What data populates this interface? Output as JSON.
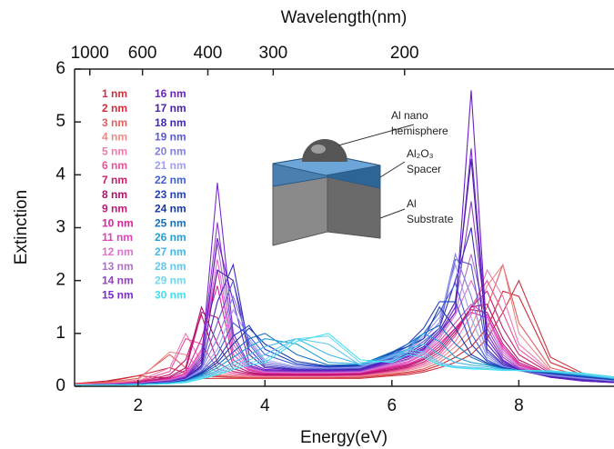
{
  "chart_data": {
    "type": "line",
    "title": "Wavelength(nm)",
    "x_label": "Energy(eV)",
    "y_label": "Extinction",
    "x": [
      1,
      1.5,
      2,
      2.5,
      2.75,
      3,
      3.25,
      3.5,
      3.75,
      4,
      4.5,
      5,
      5.5,
      6,
      6.25,
      6.5,
      6.75,
      7,
      7.25,
      7.5,
      7.75,
      8,
      8.5,
      9,
      9.5
    ],
    "xlim": [
      1,
      9.5
    ],
    "xticks": [
      2,
      4,
      6,
      8
    ],
    "ylim": [
      0,
      6
    ],
    "yticks": [
      0,
      1,
      2,
      3,
      4,
      5,
      6
    ],
    "x2ticks": [
      {
        "value": 1.24,
        "label": "1000"
      },
      {
        "value": 2.07,
        "label": "600"
      },
      {
        "value": 3.1,
        "label": "400"
      },
      {
        "value": 4.13,
        "label": "300"
      },
      {
        "value": 6.2,
        "label": "200"
      }
    ],
    "annotations": [
      "Al nano",
      "hemisphere",
      "Al₂O₃",
      "Spacer",
      "Al",
      "Substrate"
    ],
    "series": [
      {
        "name": "1 nm",
        "color": "#c8323c",
        "values": [
          0.05,
          0.1,
          0.2,
          0.15,
          0.15,
          0.15,
          0.15,
          0.15,
          0.15,
          0.15,
          0.15,
          0.15,
          0.15,
          0.2,
          0.22,
          0.27,
          0.35,
          0.45,
          0.6,
          0.9,
          1.4,
          2.0,
          0.55,
          0.25,
          0.15
        ]
      },
      {
        "name": "2 nm",
        "color": "#d42a3a",
        "values": [
          0.05,
          0.08,
          0.2,
          0.35,
          0.25,
          0.2,
          0.18,
          0.17,
          0.16,
          0.16,
          0.16,
          0.16,
          0.17,
          0.22,
          0.25,
          0.3,
          0.4,
          0.55,
          0.75,
          1.1,
          1.8,
          1.7,
          0.45,
          0.22,
          0.14
        ]
      },
      {
        "name": "3 nm",
        "color": "#e0605f",
        "values": [
          0.04,
          0.07,
          0.15,
          0.6,
          0.35,
          0.25,
          0.2,
          0.18,
          0.17,
          0.17,
          0.17,
          0.17,
          0.18,
          0.23,
          0.27,
          0.33,
          0.45,
          0.65,
          0.95,
          1.5,
          2.3,
          1.2,
          0.35,
          0.2,
          0.13
        ]
      },
      {
        "name": "4 nm",
        "color": "#ea8a8a",
        "values": [
          0.04,
          0.06,
          0.12,
          0.65,
          0.6,
          0.3,
          0.22,
          0.2,
          0.18,
          0.18,
          0.18,
          0.18,
          0.19,
          0.25,
          0.3,
          0.37,
          0.5,
          0.75,
          1.1,
          1.9,
          2.3,
          1.0,
          0.3,
          0.18,
          0.12
        ]
      },
      {
        "name": "5 nm",
        "color": "#f07ab0",
        "values": [
          0.03,
          0.05,
          0.1,
          0.35,
          1.0,
          0.45,
          0.27,
          0.22,
          0.2,
          0.19,
          0.19,
          0.19,
          0.2,
          0.27,
          0.32,
          0.4,
          0.55,
          0.85,
          1.35,
          2.2,
          1.7,
          0.8,
          0.28,
          0.16,
          0.11
        ]
      },
      {
        "name": "6 nm",
        "color": "#e8509a",
        "values": [
          0.03,
          0.05,
          0.09,
          0.28,
          0.9,
          0.8,
          0.33,
          0.25,
          0.21,
          0.2,
          0.2,
          0.2,
          0.21,
          0.28,
          0.34,
          0.43,
          0.6,
          0.95,
          1.5,
          2.0,
          1.4,
          0.7,
          0.26,
          0.15,
          0.1
        ]
      },
      {
        "name": "7 nm",
        "color": "#c81e6e",
        "values": [
          0.03,
          0.04,
          0.08,
          0.22,
          0.5,
          1.35,
          0.45,
          0.28,
          0.23,
          0.21,
          0.21,
          0.21,
          0.22,
          0.3,
          0.36,
          0.46,
          0.65,
          1.0,
          1.5,
          1.8,
          1.1,
          0.6,
          0.24,
          0.14,
          0.1
        ]
      },
      {
        "name": "8 nm",
        "color": "#b0106a",
        "values": [
          0.03,
          0.04,
          0.07,
          0.18,
          0.35,
          1.5,
          0.8,
          0.33,
          0.25,
          0.22,
          0.22,
          0.22,
          0.23,
          0.32,
          0.38,
          0.5,
          0.7,
          1.05,
          1.5,
          1.55,
          0.9,
          0.5,
          0.22,
          0.13,
          0.09
        ]
      },
      {
        "name": "9 nm",
        "color": "#c0187a",
        "values": [
          0.03,
          0.04,
          0.07,
          0.16,
          0.3,
          1.4,
          1.3,
          0.4,
          0.27,
          0.23,
          0.23,
          0.23,
          0.24,
          0.34,
          0.4,
          0.52,
          0.75,
          1.1,
          1.45,
          1.4,
          0.8,
          0.45,
          0.21,
          0.12,
          0.09
        ]
      },
      {
        "name": "10 nm",
        "color": "#e0209c",
        "values": [
          0.03,
          0.04,
          0.06,
          0.14,
          0.25,
          0.9,
          1.9,
          0.5,
          0.3,
          0.25,
          0.24,
          0.24,
          0.25,
          0.36,
          0.42,
          0.55,
          0.8,
          1.1,
          1.4,
          1.3,
          0.75,
          0.42,
          0.2,
          0.12,
          0.08
        ]
      },
      {
        "name": "11 nm",
        "color": "#e040b8",
        "values": [
          0.03,
          0.04,
          0.06,
          0.13,
          0.22,
          0.7,
          2.2,
          0.6,
          0.32,
          0.26,
          0.25,
          0.25,
          0.26,
          0.38,
          0.45,
          0.6,
          0.85,
          1.2,
          1.55,
          1.35,
          0.7,
          0.4,
          0.19,
          0.11,
          0.08
        ]
      },
      {
        "name": "12 nm",
        "color": "#e070d0",
        "values": [
          0.03,
          0.04,
          0.06,
          0.12,
          0.2,
          0.65,
          2.4,
          0.7,
          0.34,
          0.27,
          0.26,
          0.26,
          0.27,
          0.4,
          0.47,
          0.62,
          0.9,
          1.35,
          2.0,
          1.3,
          0.65,
          0.38,
          0.18,
          0.11,
          0.08
        ]
      },
      {
        "name": "13 nm",
        "color": "#b070c8",
        "values": [
          0.02,
          0.03,
          0.05,
          0.11,
          0.19,
          0.6,
          2.7,
          0.8,
          0.36,
          0.28,
          0.27,
          0.27,
          0.28,
          0.42,
          0.5,
          0.65,
          0.95,
          1.4,
          2.5,
          1.2,
          0.6,
          0.36,
          0.18,
          0.1,
          0.07
        ]
      },
      {
        "name": "14 nm",
        "color": "#9040c0",
        "values": [
          0.02,
          0.03,
          0.05,
          0.1,
          0.18,
          0.55,
          3.1,
          0.9,
          0.38,
          0.29,
          0.28,
          0.28,
          0.29,
          0.44,
          0.52,
          0.68,
          1.0,
          1.5,
          3.5,
          1.1,
          0.55,
          0.34,
          0.17,
          0.1,
          0.07
        ]
      },
      {
        "name": "15 nm",
        "color": "#7a2ad0",
        "values": [
          0.02,
          0.03,
          0.05,
          0.1,
          0.17,
          0.5,
          3.85,
          1.0,
          0.4,
          0.3,
          0.29,
          0.29,
          0.3,
          0.46,
          0.55,
          0.7,
          1.0,
          1.5,
          4.5,
          1.0,
          0.5,
          0.32,
          0.17,
          0.1,
          0.07
        ]
      },
      {
        "name": "16 nm",
        "color": "#6a20c8",
        "values": [
          0.02,
          0.03,
          0.04,
          0.09,
          0.16,
          0.45,
          2.8,
          1.6,
          0.45,
          0.32,
          0.3,
          0.3,
          0.31,
          0.48,
          0.57,
          0.72,
          1.0,
          1.4,
          5.6,
          0.9,
          0.48,
          0.31,
          0.17,
          0.11,
          0.08
        ]
      },
      {
        "name": "17 nm",
        "color": "#4a20a8",
        "values": [
          0.02,
          0.03,
          0.04,
          0.09,
          0.15,
          0.4,
          2.2,
          2.0,
          0.6,
          0.35,
          0.31,
          0.31,
          0.32,
          0.5,
          0.6,
          0.75,
          1.05,
          1.6,
          4.3,
          0.8,
          0.45,
          0.3,
          0.18,
          0.12,
          0.08
        ]
      },
      {
        "name": "18 nm",
        "color": "#3a28c0",
        "values": [
          0.02,
          0.03,
          0.04,
          0.08,
          0.14,
          0.38,
          1.6,
          2.3,
          0.7,
          0.38,
          0.32,
          0.32,
          0.33,
          0.52,
          0.62,
          0.8,
          1.1,
          2.0,
          3.0,
          0.7,
          0.42,
          0.3,
          0.19,
          0.13,
          0.09
        ]
      },
      {
        "name": "19 nm",
        "color": "#5a5ad0",
        "values": [
          0.02,
          0.03,
          0.04,
          0.08,
          0.14,
          0.35,
          1.2,
          2.0,
          0.8,
          0.42,
          0.33,
          0.33,
          0.34,
          0.54,
          0.65,
          0.85,
          1.1,
          2.4,
          2.3,
          0.65,
          0.4,
          0.3,
          0.2,
          0.14,
          0.1
        ]
      },
      {
        "name": "20 nm",
        "color": "#8080e0",
        "values": [
          0.02,
          0.03,
          0.04,
          0.08,
          0.13,
          0.33,
          0.9,
          1.7,
          0.85,
          0.46,
          0.35,
          0.34,
          0.36,
          0.56,
          0.68,
          0.9,
          1.2,
          2.5,
          1.7,
          0.6,
          0.38,
          0.3,
          0.21,
          0.15,
          0.1
        ]
      },
      {
        "name": "21 nm",
        "color": "#a0a0f0",
        "values": [
          0.02,
          0.03,
          0.04,
          0.07,
          0.13,
          0.3,
          0.7,
          1.45,
          0.9,
          0.5,
          0.37,
          0.35,
          0.37,
          0.58,
          0.7,
          0.95,
          1.3,
          2.3,
          1.3,
          0.55,
          0.37,
          0.3,
          0.22,
          0.16,
          0.11
        ]
      },
      {
        "name": "22 nm",
        "color": "#4060d8",
        "values": [
          0.02,
          0.03,
          0.04,
          0.07,
          0.12,
          0.28,
          0.6,
          1.2,
          0.95,
          0.6,
          0.4,
          0.36,
          0.38,
          0.6,
          0.75,
          1.0,
          1.4,
          1.95,
          1.0,
          0.5,
          0.36,
          0.3,
          0.23,
          0.17,
          0.12
        ]
      },
      {
        "name": "23 nm",
        "color": "#2040c0",
        "values": [
          0.02,
          0.03,
          0.04,
          0.07,
          0.12,
          0.26,
          0.5,
          0.95,
          1.15,
          0.7,
          0.43,
          0.37,
          0.39,
          0.62,
          0.8,
          1.1,
          1.6,
          1.6,
          0.8,
          0.47,
          0.35,
          0.3,
          0.24,
          0.18,
          0.12
        ]
      },
      {
        "name": "24 nm",
        "color": "#1838a8",
        "values": [
          0.02,
          0.03,
          0.04,
          0.06,
          0.11,
          0.24,
          0.45,
          0.8,
          1.1,
          0.8,
          0.47,
          0.38,
          0.4,
          0.64,
          0.75,
          0.9,
          1.5,
          1.1,
          0.6,
          0.44,
          0.34,
          0.3,
          0.25,
          0.19,
          0.13
        ]
      },
      {
        "name": "25 nm",
        "color": "#1870c0",
        "values": [
          0.02,
          0.03,
          0.04,
          0.06,
          0.1,
          0.22,
          0.4,
          0.65,
          0.9,
          1.0,
          0.6,
          0.4,
          0.41,
          0.65,
          0.8,
          1.0,
          1.15,
          0.8,
          0.55,
          0.42,
          0.33,
          0.3,
          0.26,
          0.2,
          0.14
        ]
      },
      {
        "name": "26 nm",
        "color": "#20a0d8",
        "values": [
          0.02,
          0.02,
          0.03,
          0.06,
          0.1,
          0.2,
          0.35,
          0.55,
          0.75,
          0.9,
          0.8,
          0.45,
          0.42,
          0.6,
          0.7,
          1.0,
          0.85,
          0.55,
          0.45,
          0.4,
          0.33,
          0.3,
          0.27,
          0.21,
          0.15
        ]
      },
      {
        "name": "27 nm",
        "color": "#40b8e8",
        "values": [
          0.02,
          0.02,
          0.03,
          0.05,
          0.09,
          0.18,
          0.3,
          0.45,
          0.6,
          0.75,
          0.9,
          0.6,
          0.42,
          0.55,
          0.7,
          0.8,
          0.6,
          0.45,
          0.4,
          0.37,
          0.32,
          0.3,
          0.28,
          0.22,
          0.15
        ]
      },
      {
        "name": "28 nm",
        "color": "#60c8f0",
        "values": [
          0.02,
          0.02,
          0.03,
          0.05,
          0.08,
          0.16,
          0.27,
          0.4,
          0.5,
          0.6,
          0.9,
          0.8,
          0.4,
          0.5,
          0.7,
          0.65,
          0.45,
          0.38,
          0.36,
          0.34,
          0.31,
          0.3,
          0.28,
          0.23,
          0.16
        ]
      },
      {
        "name": "29 nm",
        "color": "#70d8f0",
        "values": [
          0.02,
          0.02,
          0.03,
          0.05,
          0.08,
          0.15,
          0.25,
          0.35,
          0.45,
          0.5,
          0.9,
          0.95,
          0.45,
          0.48,
          0.65,
          0.6,
          0.42,
          0.36,
          0.34,
          0.33,
          0.31,
          0.3,
          0.29,
          0.24,
          0.17
        ]
      },
      {
        "name": "30 nm",
        "color": "#40e0f0",
        "values": [
          0.02,
          0.02,
          0.03,
          0.05,
          0.07,
          0.14,
          0.22,
          0.32,
          0.4,
          0.45,
          0.85,
          1.0,
          0.5,
          0.45,
          0.6,
          0.55,
          0.4,
          0.35,
          0.33,
          0.32,
          0.3,
          0.3,
          0.29,
          0.25,
          0.18
        ]
      }
    ]
  }
}
